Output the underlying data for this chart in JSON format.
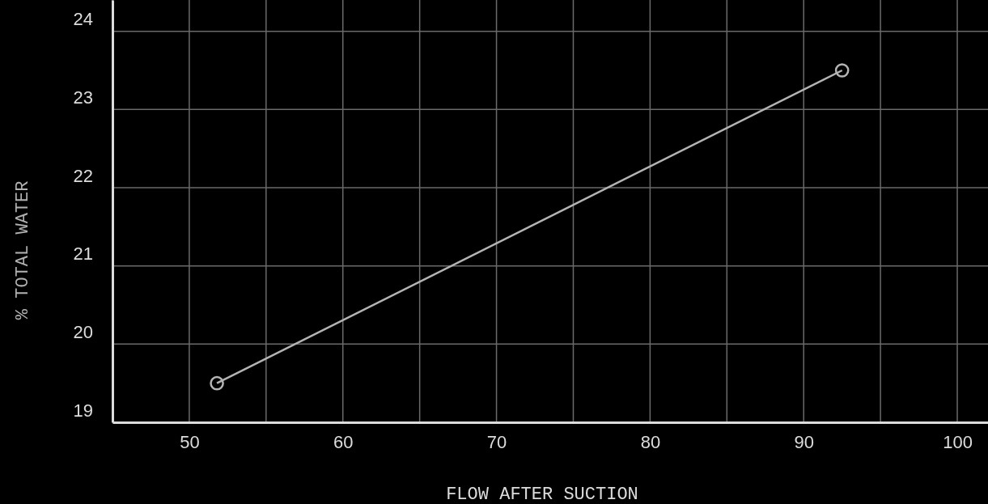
{
  "chart_data": {
    "type": "line",
    "xlabel": "FLOW AFTER SUCTION",
    "ylabel": "% TOTAL WATER",
    "x": [
      51.8,
      92.5
    ],
    "series": [
      {
        "color": "#b4b4b4",
        "values": [
          19.5,
          23.5
        ]
      }
    ],
    "xlim": [
      45,
      102
    ],
    "ylim": [
      19,
      24.4
    ],
    "xticks": [
      {
        "value": 45,
        "label": null
      },
      50,
      {
        "value": 55,
        "label": null
      },
      60,
      {
        "value": 65,
        "label": null
      },
      70,
      {
        "value": 75,
        "label": null
      },
      80,
      {
        "value": 85,
        "label": null
      },
      90,
      {
        "value": 95,
        "label": null
      },
      100
    ],
    "yticks": [
      19,
      20,
      21,
      22,
      23,
      24
    ],
    "grid": true,
    "marker": "circle",
    "line_style": "solid"
  }
}
